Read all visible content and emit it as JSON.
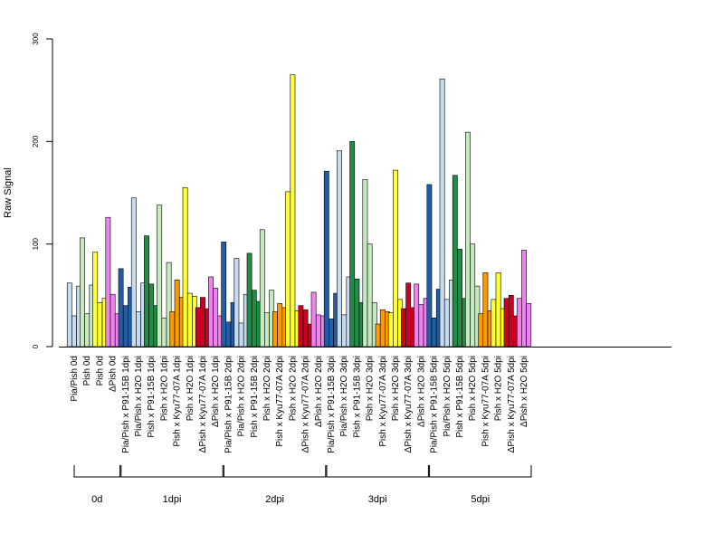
{
  "chart_data": {
    "type": "bar",
    "ylabel": "Raw Signal",
    "ylim": [
      0,
      300
    ],
    "y_ticks": [
      0,
      100,
      200,
      300
    ],
    "grid": false,
    "legend": "none",
    "categories": [
      "Pia/Pish 0d",
      "Pish 0d",
      "Pish 0d",
      "ΔPish 0d",
      "Pia/Pish x P91-15B 1dpi",
      "Pia/Pish x H2O 1dpi",
      "Pish x P91-15B 1dpi",
      "Pish x H2O 1dpi",
      "Pish x Kyu77-07A 1dpi",
      "Pish x H2O 1dpi",
      "ΔPish x Kyu77-07A 1dpi",
      "ΔPish x H2O 1dpi",
      "Pia/Pish x P91-15B 2dpi",
      "Pia/Pish x H2O 2dpi",
      "Pish x P91-15B 2dpi",
      "Pish x H2O 2dpi",
      "Pish x Kyu77-07A 2dpi",
      "Pish x H2O 2dpi",
      "ΔPish x Kyu77-07A 2dpi",
      "ΔPish x H2O 2dpi",
      "Pia/Pish x P91-15B 3dpi",
      "Pia/Pish x H2O 3dpi",
      "Pish x P91-15B 3dpi",
      "Pish x H2O 3dpi",
      "Pish x Kyu77-07A 3dpi",
      "Pish x H2O 3dpi",
      "ΔPish x Kyu77-07A 3dpi",
      "ΔPish x H2O 3dpi",
      "Pia/Pish x P91-15B 5dpi",
      "Pia/Pish x H2O 5dpi",
      "Pish x P91-15B 5dpi",
      "Pish x H2O 5dpi",
      "Pish x Kyu77-07A 5dpi",
      "Pish x H2O 5dpi",
      "ΔPish x Kyu77-07A 5dpi",
      "ΔPish x H2O 5dpi"
    ],
    "bar_colors": [
      "#c6dbef",
      "#c7e9c0",
      "#ffff33",
      "#ee82ee",
      "#225ea8",
      "#c6dbef",
      "#238b45",
      "#c7e9c0",
      "#ff9900",
      "#ffff33",
      "#cc0022",
      "#ee82ee",
      "#225ea8",
      "#c6dbef",
      "#238b45",
      "#c7e9c0",
      "#ff9900",
      "#ffff33",
      "#cc0022",
      "#ee82ee",
      "#225ea8",
      "#c6dbef",
      "#238b45",
      "#c7e9c0",
      "#ff9900",
      "#ffff33",
      "#cc0022",
      "#ee82ee",
      "#225ea8",
      "#c6dbef",
      "#238b45",
      "#c7e9c0",
      "#ff9900",
      "#ffff33",
      "#cc0022",
      "#ee82ee"
    ],
    "values": [
      [
        62,
        30,
        59
      ],
      [
        106,
        32,
        60
      ],
      [
        92,
        43,
        47
      ],
      [
        126,
        51,
        32
      ],
      [
        76,
        40,
        58
      ],
      [
        145,
        34,
        62
      ],
      [
        108,
        61,
        40
      ],
      [
        138,
        28,
        82
      ],
      [
        34,
        65,
        48
      ],
      [
        155,
        52,
        49
      ],
      [
        38,
        48,
        37
      ],
      [
        68,
        57,
        30
      ],
      [
        102,
        24,
        43
      ],
      [
        86,
        23,
        51
      ],
      [
        91,
        55,
        44
      ],
      [
        114,
        33,
        55
      ],
      [
        34,
        42,
        38
      ],
      [
        151,
        265,
        35
      ],
      [
        40,
        36,
        22
      ],
      [
        53,
        31,
        30
      ],
      [
        171,
        27,
        52
      ],
      [
        191,
        31,
        68
      ],
      [
        200,
        66,
        43
      ],
      [
        163,
        100,
        43
      ],
      [
        22,
        36,
        34
      ],
      [
        33,
        172,
        46
      ],
      [
        37,
        62,
        38
      ],
      [
        61,
        41,
        47
      ],
      [
        158,
        28,
        56
      ],
      [
        261,
        46,
        65
      ],
      [
        167,
        95,
        47
      ],
      [
        209,
        100,
        59
      ],
      [
        32,
        72,
        35
      ],
      [
        46,
        72,
        37
      ],
      [
        47,
        50,
        30
      ],
      [
        47,
        94,
        42
      ]
    ],
    "groups": [
      {
        "label": "0d",
        "count": 4
      },
      {
        "label": "1dpi",
        "count": 8
      },
      {
        "label": "2dpi",
        "count": 8
      },
      {
        "label": "3dpi",
        "count": 8
      },
      {
        "label": "5dpi",
        "count": 8
      }
    ]
  }
}
